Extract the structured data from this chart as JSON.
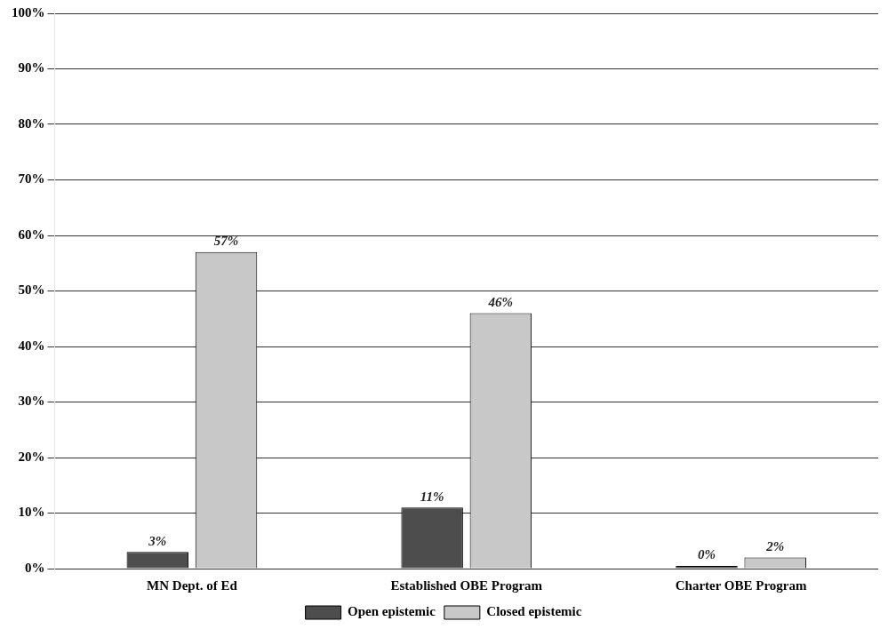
{
  "chart_data": {
    "type": "bar",
    "categories": [
      "MN Dept. of Ed",
      "Established OBE Program",
      "Charter OBE Program"
    ],
    "series": [
      {
        "name": "Open epistemic",
        "color": "#4d4d4d",
        "values": [
          3,
          11,
          0
        ],
        "value_labels": [
          "3%",
          "11%",
          "0%"
        ]
      },
      {
        "name": "Closed epistemic",
        "color": "#c8c8c8",
        "values": [
          57,
          46,
          2
        ],
        "value_labels": [
          "57%",
          "46%",
          "2%"
        ]
      }
    ],
    "ylim": [
      0,
      100
    ],
    "yticks": [
      {
        "value": 0,
        "label": "0%"
      },
      {
        "value": 10,
        "label": "10%"
      },
      {
        "value": 20,
        "label": "20%"
      },
      {
        "value": 30,
        "label": "30%"
      },
      {
        "value": 40,
        "label": "40%"
      },
      {
        "value": 50,
        "label": "50%"
      },
      {
        "value": 60,
        "label": "60%"
      },
      {
        "value": 70,
        "label": "70%"
      },
      {
        "value": 80,
        "label": "80%"
      },
      {
        "value": 90,
        "label": "90%"
      },
      {
        "value": 100,
        "label": "100%"
      }
    ],
    "grid": "y",
    "legend": "bottom"
  }
}
